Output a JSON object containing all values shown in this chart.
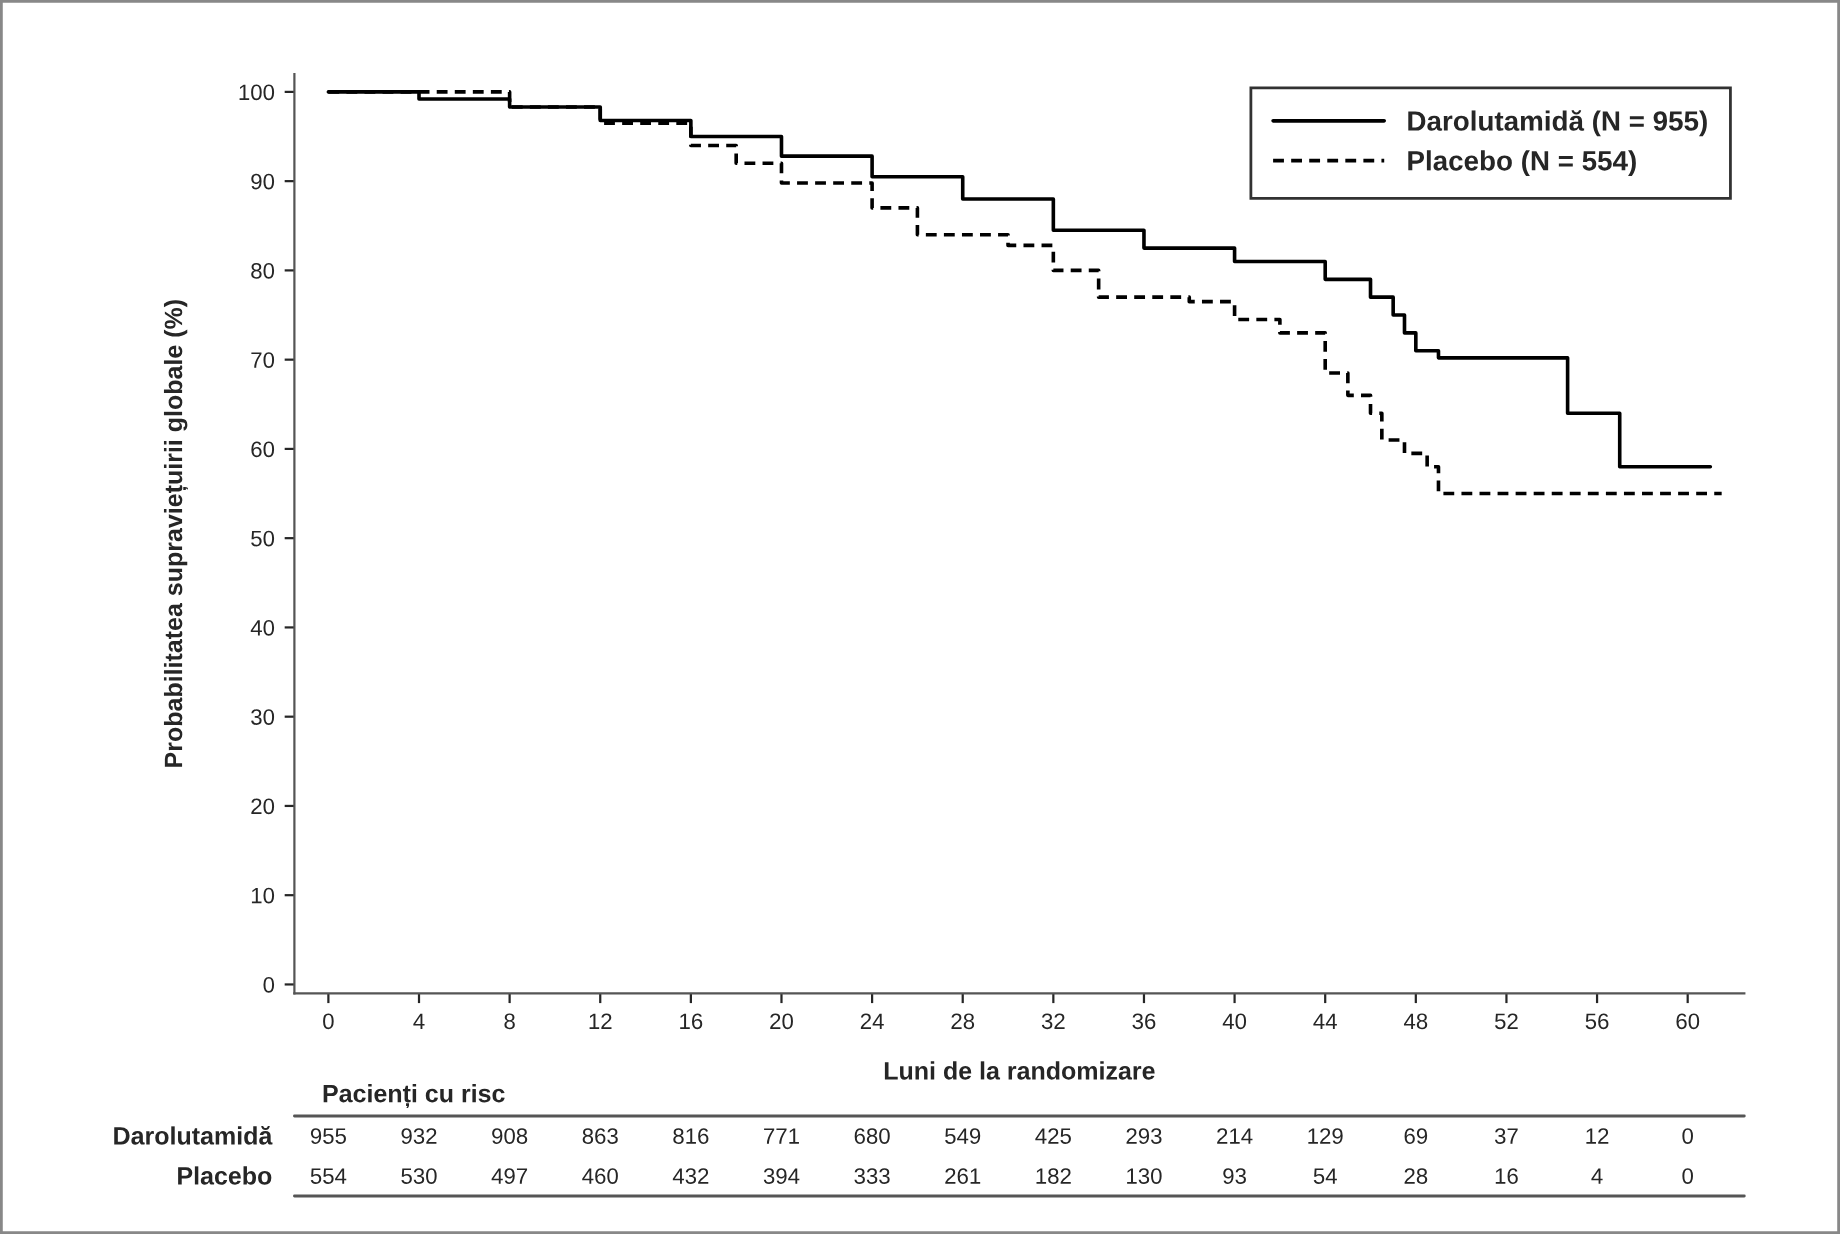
{
  "chart_data": {
    "type": "step",
    "xlabel": "Luni de la randomizare",
    "ylabel": "Probabilitatea supraviețuirii globale (%)",
    "series": [
      {
        "name": "Darolutamidă (N = 955)",
        "color": "#000000",
        "line_style": "solid",
        "x": [
          0,
          4,
          8,
          12,
          16,
          20,
          24,
          28,
          32,
          36,
          40,
          44,
          46,
          47,
          47.5,
          48,
          49,
          54.7,
          57,
          61
        ],
        "values": [
          100,
          99.2,
          98.3,
          96.8,
          95,
          92.8,
          90.5,
          88,
          84.5,
          82.5,
          81,
          79,
          77,
          75,
          73,
          71,
          70.2,
          64,
          58,
          58
        ]
      },
      {
        "name": "Placebo (N = 554)",
        "color": "#000000",
        "line_style": "dashed",
        "x": [
          0,
          8,
          12,
          16,
          18,
          20,
          24,
          26,
          30,
          32,
          34,
          38,
          40,
          42,
          44,
          45,
          46,
          46.5,
          47.5,
          48.5,
          49,
          61.5
        ],
        "values": [
          100,
          98.3,
          96.5,
          94,
          92,
          89.8,
          87,
          84,
          82.8,
          80,
          77,
          76.5,
          74.5,
          73,
          68.5,
          66,
          64,
          61,
          59.5,
          58,
          55,
          55
        ]
      }
    ],
    "xlim": [
      -1.5,
      62.5
    ],
    "xticks": [
      0,
      4,
      8,
      12,
      16,
      20,
      24,
      28,
      32,
      36,
      40,
      44,
      48,
      52,
      56,
      60
    ],
    "ylim": [
      -1,
      102
    ],
    "yticks": [
      0,
      10,
      20,
      30,
      40,
      50,
      60,
      70,
      80,
      90,
      100
    ],
    "grid": false,
    "legend": "top right",
    "annotations": [
      "Pacienți cu risc",
      "Darolutamidă",
      "955",
      "932",
      "908",
      "863",
      "816",
      "771",
      "680",
      "549",
      "425",
      "293",
      "214",
      "129",
      "69",
      "37",
      "12",
      "0",
      "Placebo",
      "554",
      "530",
      "497",
      "460",
      "432",
      "394",
      "333",
      "261",
      "182",
      "130",
      "93",
      "54",
      "28",
      "16",
      "4",
      "0"
    ]
  }
}
